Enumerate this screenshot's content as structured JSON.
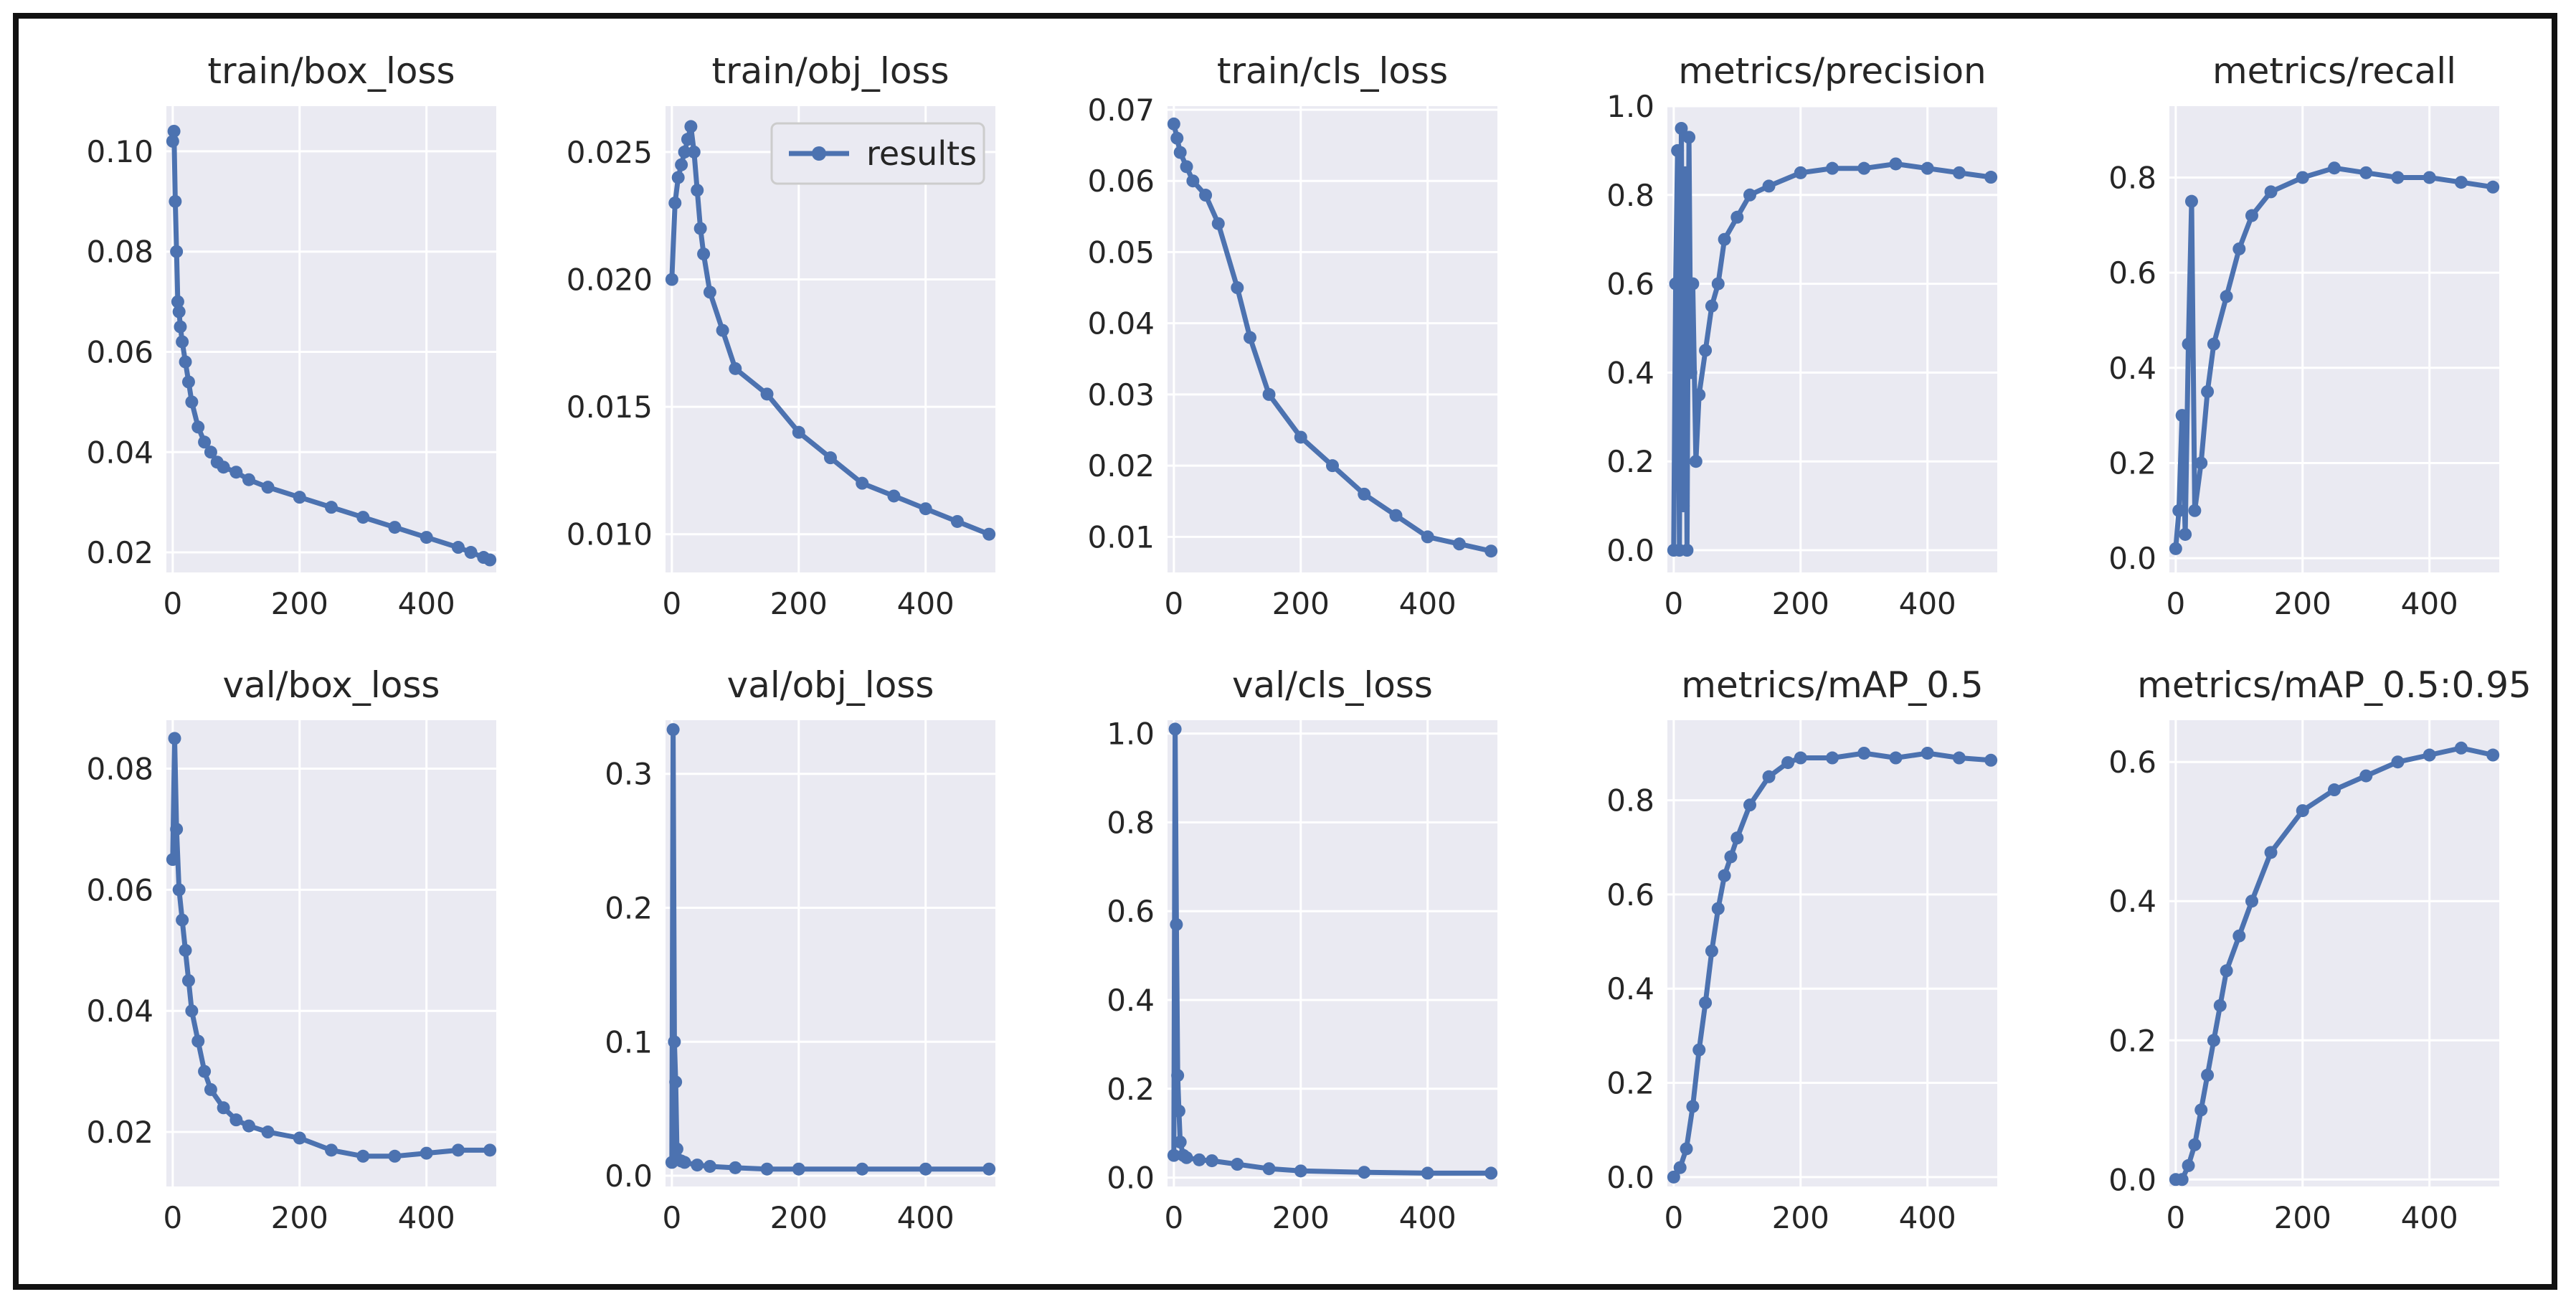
{
  "style": {
    "panel_bg": "#eaeaf2",
    "grid": "#ffffff",
    "series_color": "#4c72b0"
  },
  "chart_data": [
    {
      "type": "line",
      "title": "train/box_loss",
      "legend": "",
      "xlim": [
        -10,
        510
      ],
      "ylim": [
        0.016,
        0.109
      ],
      "xticks": [
        0,
        200,
        400
      ],
      "yticks": [
        0.02,
        0.04,
        0.06,
        0.08,
        0.1
      ],
      "ytick_labels": [
        "0.02",
        "0.04",
        "0.06",
        "0.08",
        "0.10"
      ],
      "x": [
        0,
        2,
        4,
        6,
        8,
        10,
        12,
        15,
        20,
        25,
        30,
        40,
        50,
        60,
        70,
        80,
        100,
        120,
        150,
        200,
        250,
        300,
        350,
        400,
        450,
        470,
        490,
        500
      ],
      "series": [
        {
          "values": [
            0.102,
            0.104,
            0.09,
            0.08,
            0.07,
            0.068,
            0.065,
            0.062,
            0.058,
            0.054,
            0.05,
            0.045,
            0.042,
            0.04,
            0.038,
            0.037,
            0.036,
            0.0345,
            0.033,
            0.031,
            0.029,
            0.027,
            0.025,
            0.023,
            0.021,
            0.02,
            0.019,
            0.0185
          ]
        }
      ]
    },
    {
      "type": "line",
      "title": "train/obj_loss",
      "legend": "results",
      "legend_loc": "upper right",
      "xlim": [
        -10,
        510
      ],
      "ylim": [
        0.0085,
        0.0268
      ],
      "xticks": [
        0,
        200,
        400
      ],
      "yticks": [
        0.01,
        0.015,
        0.02,
        0.025
      ],
      "ytick_labels": [
        "0.010",
        "0.015",
        "0.020",
        "0.025"
      ],
      "x": [
        0,
        5,
        10,
        15,
        20,
        25,
        30,
        35,
        40,
        45,
        50,
        60,
        80,
        100,
        150,
        200,
        250,
        300,
        350,
        400,
        450,
        500
      ],
      "series": [
        {
          "values": [
            0.02,
            0.023,
            0.024,
            0.0245,
            0.025,
            0.0255,
            0.026,
            0.025,
            0.0235,
            0.022,
            0.021,
            0.0195,
            0.018,
            0.0165,
            0.0155,
            0.014,
            0.013,
            0.012,
            0.0115,
            0.011,
            0.0105,
            0.01
          ]
        }
      ]
    },
    {
      "type": "line",
      "title": "train/cls_loss",
      "legend": "",
      "xlim": [
        -10,
        510
      ],
      "ylim": [
        0.005,
        0.0705
      ],
      "xticks": [
        0,
        200,
        400
      ],
      "yticks": [
        0.01,
        0.02,
        0.03,
        0.04,
        0.05,
        0.06,
        0.07
      ],
      "ytick_labels": [
        "0.01",
        "0.02",
        "0.03",
        "0.04",
        "0.05",
        "0.06",
        "0.07"
      ],
      "x": [
        0,
        5,
        10,
        20,
        30,
        50,
        70,
        100,
        120,
        150,
        200,
        250,
        300,
        350,
        400,
        450,
        500
      ],
      "series": [
        {
          "values": [
            0.068,
            0.066,
            0.064,
            0.062,
            0.06,
            0.058,
            0.054,
            0.045,
            0.038,
            0.03,
            0.024,
            0.02,
            0.016,
            0.013,
            0.01,
            0.009,
            0.008
          ]
        }
      ]
    },
    {
      "type": "line",
      "title": "metrics/precision",
      "legend": "",
      "xlim": [
        -10,
        510
      ],
      "ylim": [
        -0.05,
        1.0
      ],
      "xticks": [
        0,
        200,
        400
      ],
      "yticks": [
        0.0,
        0.2,
        0.4,
        0.6,
        0.8,
        1.0
      ],
      "ytick_labels": [
        "0.0",
        "0.2",
        "0.4",
        "0.6",
        "0.8",
        "1.0"
      ],
      "x": [
        0,
        3,
        6,
        9,
        12,
        15,
        18,
        21,
        24,
        27,
        30,
        35,
        40,
        50,
        60,
        70,
        80,
        100,
        120,
        150,
        200,
        250,
        300,
        350,
        400,
        450,
        500
      ],
      "series": [
        {
          "values": [
            0.0,
            0.6,
            0.9,
            0.0,
            0.95,
            0.1,
            0.85,
            0.0,
            0.93,
            0.4,
            0.6,
            0.2,
            0.35,
            0.45,
            0.55,
            0.6,
            0.7,
            0.75,
            0.8,
            0.82,
            0.85,
            0.86,
            0.86,
            0.87,
            0.86,
            0.85,
            0.84
          ]
        }
      ]
    },
    {
      "type": "line",
      "title": "metrics/recall",
      "legend": "",
      "xlim": [
        -10,
        510
      ],
      "ylim": [
        -0.03,
        0.95
      ],
      "xticks": [
        0,
        200,
        400
      ],
      "yticks": [
        0.0,
        0.2,
        0.4,
        0.6,
        0.8
      ],
      "ytick_labels": [
        "0.0",
        "0.2",
        "0.4",
        "0.6",
        "0.8"
      ],
      "x": [
        0,
        5,
        10,
        15,
        20,
        25,
        30,
        40,
        50,
        60,
        80,
        100,
        120,
        150,
        200,
        250,
        300,
        350,
        400,
        450,
        500
      ],
      "series": [
        {
          "values": [
            0.02,
            0.1,
            0.3,
            0.05,
            0.45,
            0.75,
            0.1,
            0.2,
            0.35,
            0.45,
            0.55,
            0.65,
            0.72,
            0.77,
            0.8,
            0.82,
            0.81,
            0.8,
            0.8,
            0.79,
            0.78
          ]
        }
      ]
    },
    {
      "type": "line",
      "title": "val/box_loss",
      "legend": "",
      "xlim": [
        -10,
        510
      ],
      "ylim": [
        0.011,
        0.088
      ],
      "xticks": [
        0,
        200,
        400
      ],
      "yticks": [
        0.02,
        0.04,
        0.06,
        0.08
      ],
      "ytick_labels": [
        "0.02",
        "0.04",
        "0.06",
        "0.08"
      ],
      "x": [
        0,
        3,
        6,
        10,
        15,
        20,
        25,
        30,
        40,
        50,
        60,
        80,
        100,
        120,
        150,
        200,
        250,
        300,
        350,
        400,
        450,
        500
      ],
      "series": [
        {
          "values": [
            0.065,
            0.085,
            0.07,
            0.06,
            0.055,
            0.05,
            0.045,
            0.04,
            0.035,
            0.03,
            0.027,
            0.024,
            0.022,
            0.021,
            0.02,
            0.019,
            0.017,
            0.016,
            0.016,
            0.0165,
            0.017,
            0.017
          ]
        }
      ]
    },
    {
      "type": "line",
      "title": "val/obj_loss",
      "legend": "",
      "xlim": [
        -10,
        510
      ],
      "ylim": [
        -0.008,
        0.34
      ],
      "xticks": [
        0,
        200,
        400
      ],
      "yticks": [
        0.0,
        0.1,
        0.2,
        0.3
      ],
      "ytick_labels": [
        "0.0",
        "0.1",
        "0.2",
        "0.3"
      ],
      "x": [
        0,
        2,
        4,
        6,
        8,
        10,
        15,
        20,
        40,
        60,
        100,
        150,
        200,
        300,
        400,
        500
      ],
      "series": [
        {
          "values": [
            0.01,
            0.333,
            0.1,
            0.07,
            0.02,
            0.012,
            0.011,
            0.01,
            0.008,
            0.007,
            0.006,
            0.005,
            0.005,
            0.005,
            0.005,
            0.005
          ]
        }
      ]
    },
    {
      "type": "line",
      "title": "val/cls_loss",
      "legend": "",
      "xlim": [
        -10,
        510
      ],
      "ylim": [
        -0.02,
        1.03
      ],
      "xticks": [
        0,
        200,
        400
      ],
      "yticks": [
        0.0,
        0.2,
        0.4,
        0.6,
        0.8,
        1.0
      ],
      "ytick_labels": [
        "0.0",
        "0.2",
        "0.4",
        "0.6",
        "0.8",
        "1.0"
      ],
      "x": [
        0,
        2,
        4,
        6,
        8,
        10,
        15,
        20,
        40,
        60,
        100,
        150,
        200,
        300,
        400,
        500
      ],
      "series": [
        {
          "values": [
            0.05,
            1.01,
            0.57,
            0.23,
            0.15,
            0.08,
            0.05,
            0.045,
            0.04,
            0.038,
            0.03,
            0.02,
            0.015,
            0.012,
            0.01,
            0.01
          ]
        }
      ]
    },
    {
      "type": "line",
      "title": "metrics/mAP_0.5",
      "legend": "",
      "xlim": [
        -10,
        510
      ],
      "ylim": [
        -0.02,
        0.97
      ],
      "xticks": [
        0,
        200,
        400
      ],
      "yticks": [
        0.0,
        0.2,
        0.4,
        0.6,
        0.8
      ],
      "ytick_labels": [
        "0.0",
        "0.2",
        "0.4",
        "0.6",
        "0.8"
      ],
      "x": [
        0,
        10,
        20,
        30,
        40,
        50,
        60,
        70,
        80,
        90,
        100,
        120,
        150,
        180,
        200,
        250,
        300,
        350,
        400,
        450,
        500
      ],
      "series": [
        {
          "values": [
            0.0,
            0.02,
            0.06,
            0.15,
            0.27,
            0.37,
            0.48,
            0.57,
            0.64,
            0.68,
            0.72,
            0.79,
            0.85,
            0.88,
            0.89,
            0.89,
            0.9,
            0.89,
            0.9,
            0.89,
            0.885
          ]
        }
      ]
    },
    {
      "type": "line",
      "title": "metrics/mAP_0.5:0.95",
      "legend": "",
      "xlim": [
        -10,
        510
      ],
      "ylim": [
        -0.01,
        0.66
      ],
      "xticks": [
        0,
        200,
        400
      ],
      "yticks": [
        0.0,
        0.2,
        0.4,
        0.6
      ],
      "ytick_labels": [
        "0.0",
        "0.2",
        "0.4",
        "0.6"
      ],
      "x": [
        0,
        10,
        20,
        30,
        40,
        50,
        60,
        70,
        80,
        100,
        120,
        150,
        200,
        250,
        300,
        350,
        400,
        450,
        500
      ],
      "series": [
        {
          "values": [
            0.0,
            0.0,
            0.02,
            0.05,
            0.1,
            0.15,
            0.2,
            0.25,
            0.3,
            0.35,
            0.4,
            0.47,
            0.53,
            0.56,
            0.58,
            0.6,
            0.61,
            0.62,
            0.61
          ]
        }
      ]
    }
  ]
}
